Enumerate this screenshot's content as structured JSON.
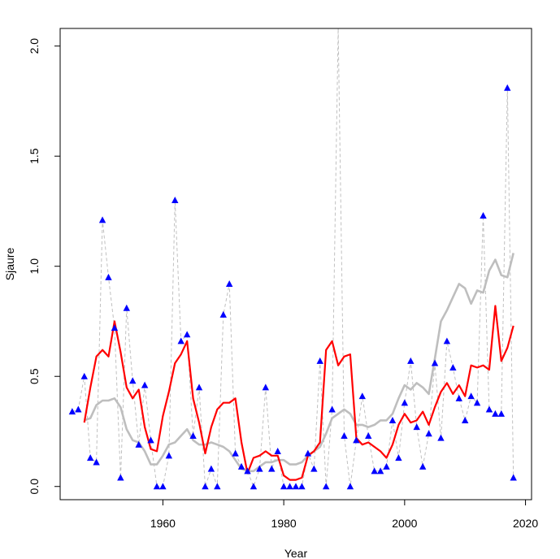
{
  "chart_data": {
    "type": "line",
    "xlabel": "Year",
    "ylabel": "Sjaure",
    "xlim": [
      1943,
      2021
    ],
    "ylim": [
      -0.06,
      2.08
    ],
    "xticks": [
      1960,
      1980,
      2000,
      2020
    ],
    "yticks": [
      0.0,
      0.5,
      1.0,
      1.5,
      2.0
    ],
    "xtick_labels": [
      "1960",
      "1980",
      "2000",
      "2020"
    ],
    "ytick_labels": [
      "0.0",
      "0.5",
      "1.0",
      "1.5",
      "2.0"
    ],
    "grid": false,
    "legend": "none",
    "series": [
      {
        "style": "observed-dashed-with-triangles",
        "line_color": "#c0c0c0",
        "marker_color": "#0000ff",
        "x": [
          1945,
          1946,
          1947,
          1948,
          1949,
          1950,
          1951,
          1952,
          1953,
          1954,
          1955,
          1956,
          1957,
          1958,
          1959,
          1960,
          1961,
          1962,
          1963,
          1964,
          1965,
          1966,
          1967,
          1968,
          1969,
          1970,
          1971,
          1972,
          1973,
          1974,
          1975,
          1976,
          1977,
          1978,
          1979,
          1980,
          1981,
          1982,
          1983,
          1984,
          1985,
          1986,
          1987,
          1988,
          1989,
          1990,
          1991,
          1992,
          1993,
          1994,
          1995,
          1996,
          1997,
          1998,
          1999,
          2000,
          2001,
          2002,
          2003,
          2004,
          2005,
          2006,
          2007,
          2008,
          2009,
          2010,
          2011,
          2012,
          2013,
          2014,
          2015,
          2016,
          2017,
          2018
        ],
        "y": [
          0.34,
          0.35,
          0.5,
          0.13,
          0.11,
          1.21,
          0.95,
          0.72,
          0.04,
          0.81,
          0.48,
          0.19,
          0.46,
          0.21,
          0.0,
          0.0,
          0.14,
          1.3,
          0.66,
          0.69,
          0.23,
          0.45,
          0.0,
          0.08,
          0.0,
          0.78,
          0.92,
          0.15,
          0.09,
          0.07,
          0.0,
          0.08,
          0.45,
          0.08,
          0.16,
          0.0,
          0.0,
          0.0,
          0.0,
          0.15,
          0.08,
          0.57,
          0.0,
          0.35,
          2.08,
          0.23,
          0.0,
          0.21,
          0.41,
          0.23,
          0.07,
          0.07,
          0.09,
          0.3,
          0.13,
          0.38,
          0.57,
          0.27,
          0.09,
          0.24,
          0.56,
          0.22,
          0.66,
          0.54,
          0.4,
          0.3,
          0.41,
          0.38,
          1.23,
          0.35,
          0.33,
          0.33,
          1.81,
          0.04
        ],
        "markers": [
          true,
          true,
          true,
          true,
          true,
          true,
          true,
          true,
          true,
          true,
          true,
          true,
          true,
          true,
          true,
          true,
          true,
          true,
          true,
          true,
          true,
          true,
          true,
          true,
          true,
          true,
          true,
          true,
          true,
          true,
          true,
          true,
          true,
          true,
          true,
          true,
          true,
          true,
          true,
          true,
          true,
          true,
          true,
          true,
          false,
          true,
          true,
          true,
          true,
          true,
          true,
          true,
          true,
          true,
          true,
          true,
          true,
          true,
          true,
          true,
          true,
          true,
          true,
          true,
          true,
          true,
          true,
          true,
          true,
          true,
          true,
          true,
          true,
          true
        ]
      },
      {
        "style": "smooth-gray",
        "line_color": "#bebebe",
        "x": [
          1947,
          1948,
          1949,
          1950,
          1951,
          1952,
          1953,
          1954,
          1955,
          1956,
          1957,
          1958,
          1959,
          1960,
          1961,
          1962,
          1963,
          1964,
          1965,
          1966,
          1967,
          1968,
          1969,
          1970,
          1971,
          1972,
          1973,
          1974,
          1975,
          1976,
          1977,
          1978,
          1979,
          1980,
          1981,
          1982,
          1983,
          1984,
          1985,
          1986,
          1987,
          1988,
          1989,
          1990,
          1991,
          1992,
          1993,
          1994,
          1995,
          1996,
          1997,
          1998,
          1999,
          2000,
          2001,
          2002,
          2003,
          2004,
          2005,
          2006,
          2007,
          2008,
          2009,
          2010,
          2011,
          2012,
          2013,
          2014,
          2015,
          2016,
          2017,
          2018
        ],
        "y": [
          0.3,
          0.31,
          0.37,
          0.39,
          0.39,
          0.4,
          0.36,
          0.26,
          0.21,
          0.2,
          0.16,
          0.1,
          0.1,
          0.14,
          0.19,
          0.2,
          0.23,
          0.26,
          0.21,
          0.19,
          0.19,
          0.2,
          0.19,
          0.18,
          0.16,
          0.12,
          0.08,
          0.07,
          0.07,
          0.09,
          0.11,
          0.11,
          0.12,
          0.12,
          0.1,
          0.1,
          0.11,
          0.14,
          0.16,
          0.18,
          0.24,
          0.31,
          0.33,
          0.35,
          0.33,
          0.28,
          0.28,
          0.27,
          0.28,
          0.3,
          0.3,
          0.33,
          0.4,
          0.46,
          0.44,
          0.47,
          0.45,
          0.42,
          0.58,
          0.75,
          0.8,
          0.86,
          0.92,
          0.9,
          0.83,
          0.89,
          0.88,
          0.98,
          1.03,
          0.96,
          0.95,
          1.06
        ]
      },
      {
        "style": "smooth-red",
        "line_color": "#ff0000",
        "x": [
          1947,
          1948,
          1949,
          1950,
          1951,
          1952,
          1953,
          1954,
          1955,
          1956,
          1957,
          1958,
          1959,
          1960,
          1961,
          1962,
          1963,
          1964,
          1965,
          1966,
          1967,
          1968,
          1969,
          1970,
          1971,
          1972,
          1973,
          1974,
          1975,
          1976,
          1977,
          1978,
          1979,
          1980,
          1981,
          1982,
          1983,
          1984,
          1985,
          1986,
          1987,
          1988,
          1989,
          1990,
          1991,
          1992,
          1993,
          1994,
          1995,
          1996,
          1997,
          1998,
          1999,
          2000,
          2001,
          2002,
          2003,
          2004,
          2005,
          2006,
          2007,
          2008,
          2009,
          2010,
          2011,
          2012,
          2013,
          2014,
          2015,
          2016,
          2017,
          2018
        ],
        "y": [
          0.29,
          0.45,
          0.59,
          0.62,
          0.59,
          0.75,
          0.61,
          0.45,
          0.4,
          0.44,
          0.27,
          0.17,
          0.16,
          0.32,
          0.43,
          0.56,
          0.6,
          0.66,
          0.4,
          0.29,
          0.15,
          0.27,
          0.35,
          0.38,
          0.38,
          0.4,
          0.2,
          0.06,
          0.13,
          0.14,
          0.16,
          0.14,
          0.14,
          0.05,
          0.03,
          0.03,
          0.04,
          0.14,
          0.16,
          0.2,
          0.62,
          0.66,
          0.55,
          0.59,
          0.6,
          0.22,
          0.19,
          0.2,
          0.18,
          0.16,
          0.13,
          0.19,
          0.28,
          0.33,
          0.29,
          0.3,
          0.34,
          0.28,
          0.36,
          0.43,
          0.47,
          0.42,
          0.46,
          0.41,
          0.55,
          0.54,
          0.55,
          0.53,
          0.82,
          0.57,
          0.63,
          0.73
        ]
      }
    ]
  }
}
